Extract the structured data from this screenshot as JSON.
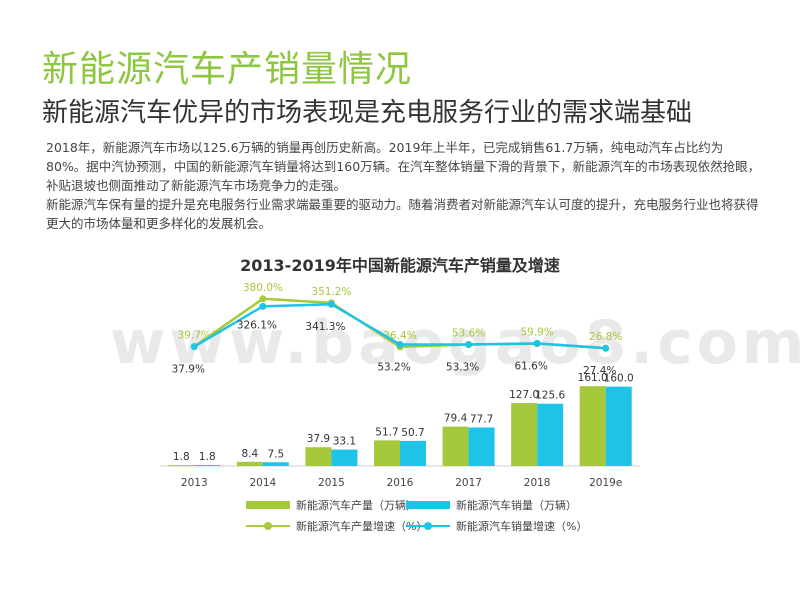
{
  "page": {
    "title": "新能源汽车产销量情况",
    "subtitle": "新能源汽车优异的市场表现是充电服务行业的需求端基础",
    "paragraphs": [
      "2018年，新能源汽车市场以125.6万辆的销量再创历史新高。2019年上半年，已完成销售61.7万辆，纯电动汽车占比约为80%。据中汽协预测，中国的新能源汽车销量将达到160万辆。在汽车整体销量下滑的背景下，新能源汽车的市场表现依然抢眼，补贴退坡也侧面推动了新能源汽车市场竞争力的走强。",
      "新能源汽车保有量的提升是充电服务行业需求端最重要的驱动力。随着消费者对新能源汽车认可度的提升，充电服务行业也将获得更大的市场体量和更多样化的发展机会。"
    ],
    "watermark": "www.baogao8.com"
  },
  "chart_data": {
    "type": "bar",
    "title": "2013-2019年中国新能源汽车产销量及增速",
    "categories": [
      "2013",
      "2014",
      "2015",
      "2016",
      "2017",
      "2018",
      "2019e"
    ],
    "series": [
      {
        "name": "新能源汽车产量（万辆）",
        "kind": "bar",
        "color": "#a5c93b",
        "values": [
          1.8,
          8.4,
          37.9,
          51.7,
          79.4,
          127.0,
          161.0
        ],
        "labels": [
          "1.8",
          "8.4",
          "37.9",
          "51.7",
          "79.4",
          "127.0",
          "161.0"
        ]
      },
      {
        "name": "新能源汽车销量（万辆）",
        "kind": "bar",
        "color": "#1ec3e8",
        "values": [
          1.8,
          7.5,
          33.1,
          50.7,
          77.7,
          125.6,
          160.0
        ],
        "labels": [
          "1.8",
          "7.5",
          "33.1",
          "50.7",
          "77.7",
          "125.6",
          "160.0"
        ]
      },
      {
        "name": "新能源汽车产量增速（%）",
        "kind": "line",
        "color": "#a5c93b",
        "values": [
          39.7,
          380.0,
          351.2,
          36.4,
          53.6,
          59.9,
          26.8
        ],
        "labels": [
          "39.7%",
          "380.0%",
          "351.2%",
          "36.4%",
          "53.6%",
          "59.9%",
          "26.8%"
        ]
      },
      {
        "name": "新能源汽车销量增速（%）",
        "kind": "line",
        "color": "#1ec3e8",
        "values": [
          37.9,
          326.1,
          341.3,
          53.2,
          53.3,
          61.6,
          27.4
        ],
        "labels": [
          "37.9%",
          "326.1%",
          "341.3%",
          "53.2%",
          "53.3%",
          "61.6%",
          "27.4%"
        ]
      }
    ],
    "bar_ylim": [
      0,
      170
    ],
    "line_ylim": [
      0,
      400
    ],
    "grid": false,
    "legend": "bottom"
  }
}
